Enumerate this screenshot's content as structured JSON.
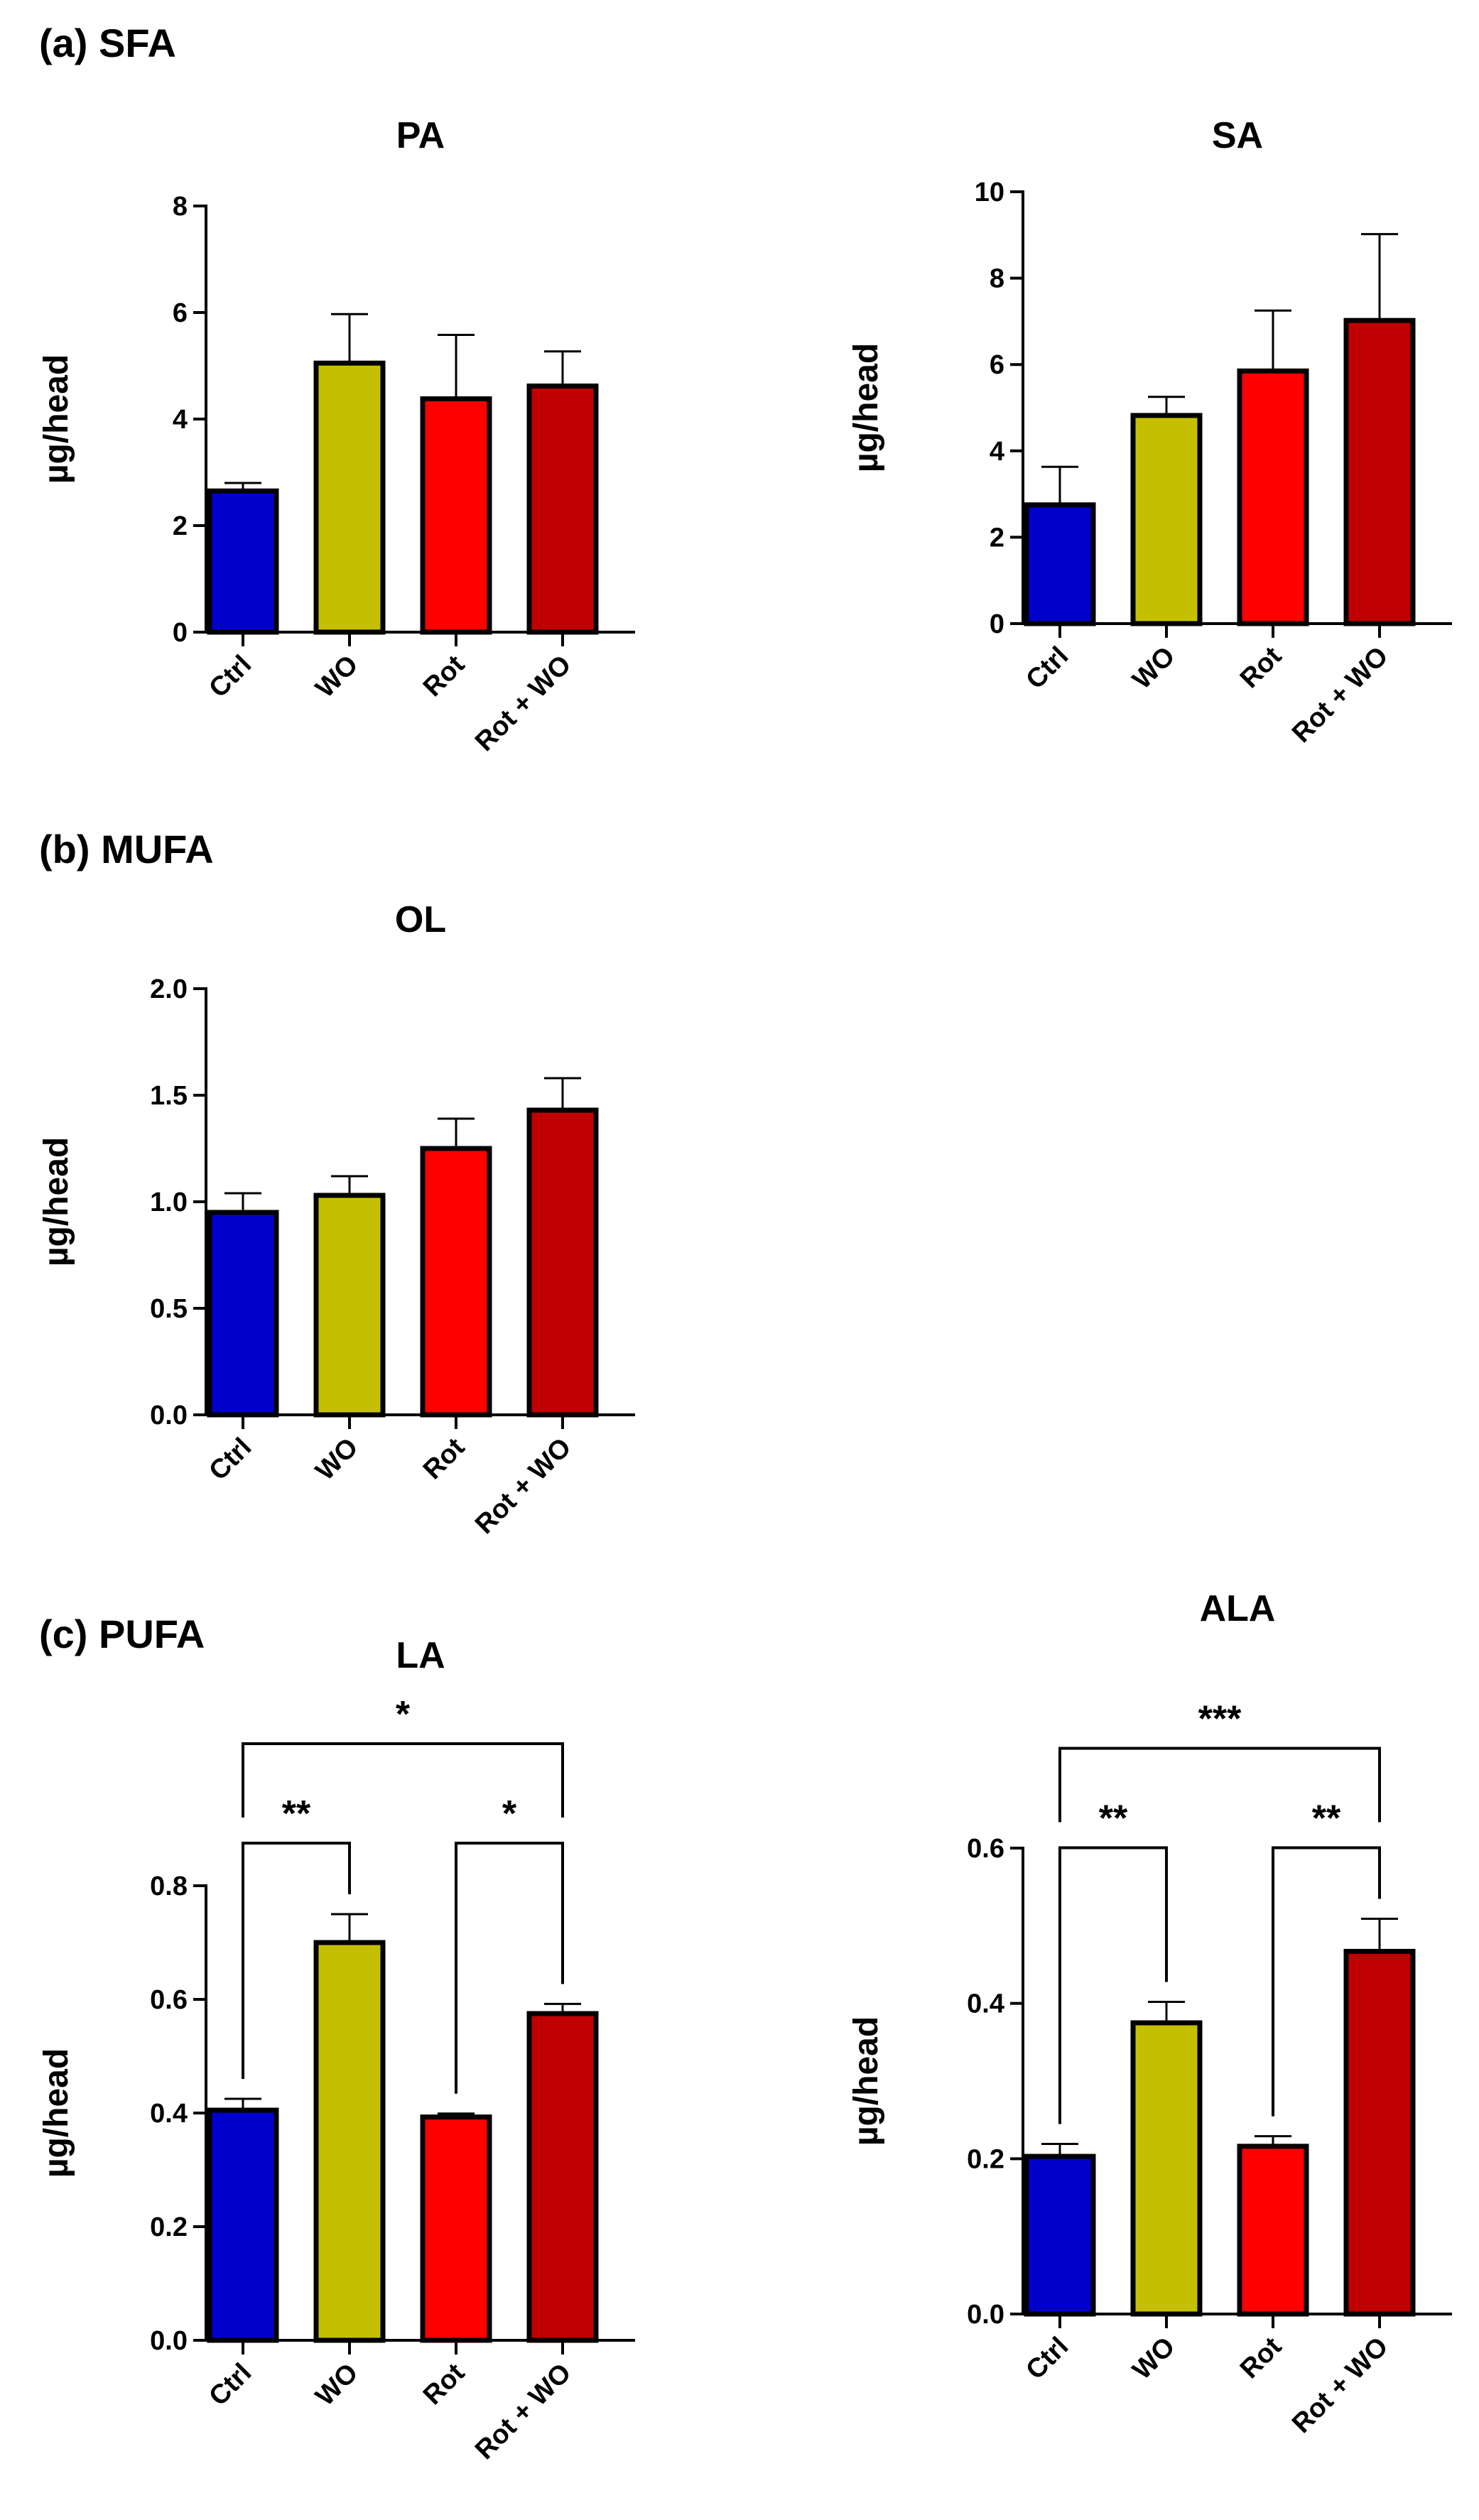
{
  "sections": {
    "sfa": "(a) SFA",
    "mufa": "(b) MUFA",
    "pufa": "(c) PUFA"
  },
  "colors": {
    "Ctrl": "#0000cc",
    "WO": "#c4c000",
    "Rot": "#ff0000",
    "Rot + WO": "#c00000"
  },
  "chart_data": [
    {
      "id": "PA",
      "type": "bar",
      "title": "PA",
      "ylabel": "µg/head",
      "xlabel": "",
      "categories": [
        "Ctrl",
        "WO",
        "Rot",
        "Rot + WO"
      ],
      "category_labels": [
        "Ctrl",
        "WO",
        "Rot",
        "Rot + WO"
      ],
      "values": [
        2.65,
        5.05,
        4.38,
        4.62
      ],
      "errors": [
        0.15,
        0.92,
        1.2,
        0.65
      ],
      "ylim": [
        0,
        8
      ],
      "yticks": [
        "0",
        "2",
        "4",
        "6",
        "8"
      ],
      "significance": []
    },
    {
      "id": "SA",
      "type": "bar",
      "title": "SA",
      "ylabel": "µg/head",
      "xlabel": "",
      "categories": [
        "Ctrl",
        "WO",
        "Rot",
        "Rot + WO"
      ],
      "category_labels": [
        "Ctrl",
        "WO",
        "Rot",
        "Rot + WO"
      ],
      "values": [
        2.75,
        4.82,
        5.85,
        7.02
      ],
      "errors": [
        0.88,
        0.43,
        1.4,
        2.0
      ],
      "ylim": [
        0,
        10
      ],
      "yticks": [
        "0",
        "2",
        "4",
        "6",
        "8",
        "10"
      ],
      "significance": []
    },
    {
      "id": "OL",
      "type": "bar",
      "title": "OL",
      "ylabel": "µg/head",
      "xlabel": "",
      "categories": [
        "Ctrl",
        "WO",
        "Rot",
        "Rot + WO"
      ],
      "category_labels": [
        "Ctrl",
        "WO",
        "Rot",
        "Rot + WO"
      ],
      "values": [
        0.95,
        1.03,
        1.25,
        1.43
      ],
      "errors": [
        0.09,
        0.09,
        0.14,
        0.15
      ],
      "ylim": [
        0,
        2.0
      ],
      "yticks": [
        "0.0",
        "0.5",
        "1.0",
        "1.5",
        "2.0"
      ],
      "significance": []
    },
    {
      "id": "LA",
      "type": "bar",
      "title": "LA",
      "ylabel": "µg/head",
      "xlabel": "",
      "categories": [
        "Ctrl",
        "WO",
        "Rot",
        "Rot + WO"
      ],
      "category_labels": [
        "Ctrl",
        "WO",
        "Rot",
        "Rot + WO"
      ],
      "values": [
        0.405,
        0.7,
        0.393,
        0.575
      ],
      "errors": [
        0.02,
        0.05,
        0.006,
        0.017
      ],
      "ylim": [
        0,
        0.8
      ],
      "yticks": [
        "0.0",
        "0.2",
        "0.4",
        "0.6",
        "0.8"
      ],
      "significance": [
        {
          "from": 0,
          "to": 1,
          "label": "**"
        },
        {
          "from": 2,
          "to": 3,
          "label": "*"
        },
        {
          "from": 0,
          "to": 3,
          "label": "*"
        }
      ]
    },
    {
      "id": "ALA",
      "type": "bar",
      "title": "ALA",
      "ylabel": "µg/head",
      "xlabel": "",
      "categories": [
        "Ctrl",
        "WO",
        "Rot",
        "Rot + WO"
      ],
      "category_labels": [
        "Ctrl",
        "WO",
        "Rot",
        "Rot  + WO"
      ],
      "values": [
        0.203,
        0.375,
        0.216,
        0.467
      ],
      "errors": [
        0.016,
        0.027,
        0.013,
        0.042
      ],
      "ylim": [
        0,
        0.6
      ],
      "yticks": [
        "0.0",
        "0.2",
        "0.4",
        "0.6"
      ],
      "significance": [
        {
          "from": 0,
          "to": 1,
          "label": "**"
        },
        {
          "from": 2,
          "to": 3,
          "label": "**"
        },
        {
          "from": 0,
          "to": 3,
          "label": "***"
        }
      ]
    }
  ]
}
